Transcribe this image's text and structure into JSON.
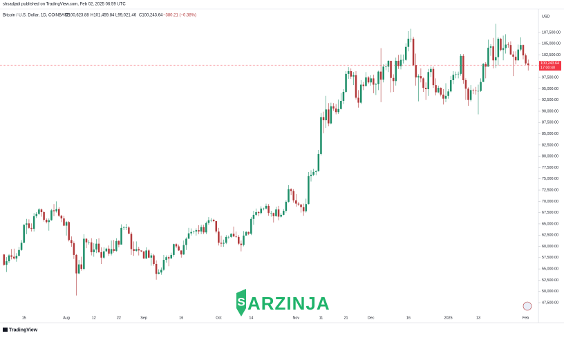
{
  "chart_data": {
    "type": "candlestick",
    "publisher_line": "shsadjadi published on TradingView.com, Feb 02, 2025 06:59 UTC",
    "symbol": "Bitcoin / U.S. Dollar, 1D, COINBASE",
    "ohlc_labels": [
      "O100,623.88",
      "H101,459.84",
      "L99,021.46",
      "C100,243.64"
    ],
    "change_label": "−380.21 (−0.38%)",
    "currency": "USD",
    "price_tag": {
      "price": "100,243.64",
      "countdown": "17:00:40"
    },
    "watermark": "ARZINJA",
    "footer": "TradingView",
    "up_color": "#1f8f6a",
    "down_color": "#b2393b",
    "price_line_color": "#f23645",
    "grid": false,
    "ylim": [
      45200,
      112700
    ],
    "yticks": [
      {
        "value": 47500,
        "label": "47,500.00"
      },
      {
        "value": 50000,
        "label": "50,000.00"
      },
      {
        "value": 52500,
        "label": "52,500.00"
      },
      {
        "value": 55000,
        "label": "55,000.00"
      },
      {
        "value": 57500,
        "label": "57,500.00"
      },
      {
        "value": 60000,
        "label": "60,000.00"
      },
      {
        "value": 62500,
        "label": "62,500.00"
      },
      {
        "value": 65000,
        "label": "65,000.00"
      },
      {
        "value": 67500,
        "label": "67,500.00"
      },
      {
        "value": 70000,
        "label": "70,000.00"
      },
      {
        "value": 72500,
        "label": "72,500.00"
      },
      {
        "value": 75000,
        "label": "75,000.00"
      },
      {
        "value": 77500,
        "label": "77,500.00"
      },
      {
        "value": 80000,
        "label": "80,000.00"
      },
      {
        "value": 82500,
        "label": "82,500.00"
      },
      {
        "value": 85000,
        "label": "85,000.00"
      },
      {
        "value": 87500,
        "label": "87,500.00"
      },
      {
        "value": 90000,
        "label": "90,000.00"
      },
      {
        "value": 92500,
        "label": "92,500.00"
      },
      {
        "value": 95000,
        "label": "95,000.00"
      },
      {
        "value": 97500,
        "label": "97,500.00"
      },
      {
        "value": 100000,
        "label": "100,000.00"
      },
      {
        "value": 102500,
        "label": "102,500.00"
      },
      {
        "value": 105000,
        "label": "105,000.00"
      },
      {
        "value": 107500,
        "label": "107,500.00"
      }
    ],
    "categories": [
      null,
      null,
      null,
      null,
      null,
      null,
      null,
      null,
      "15",
      null,
      null,
      null,
      null,
      null,
      null,
      null,
      null,
      null,
      null,
      null,
      null,
      null,
      null,
      null,
      null,
      "Aug",
      null,
      null,
      null,
      null,
      null,
      null,
      null,
      null,
      null,
      null,
      "12",
      null,
      null,
      null,
      null,
      null,
      null,
      null,
      null,
      null,
      "22",
      null,
      null,
      null,
      null,
      null,
      null,
      null,
      null,
      null,
      "Sep",
      null,
      null,
      null,
      null,
      null,
      null,
      null,
      null,
      null,
      null,
      null,
      null,
      null,
      null,
      "16",
      null,
      null,
      null,
      null,
      null,
      null,
      null,
      null,
      null,
      null,
      null,
      null,
      null,
      null,
      "Oct",
      null,
      null,
      null,
      null,
      null,
      null,
      null,
      null,
      null,
      null,
      null,
      null,
      "14",
      null,
      null,
      null,
      null,
      null,
      null,
      null,
      null,
      null,
      null,
      null,
      null,
      null,
      null,
      null,
      null,
      null,
      "Nov",
      null,
      null,
      null,
      null,
      null,
      null,
      null,
      null,
      null,
      "11",
      null,
      null,
      null,
      null,
      null,
      null,
      null,
      null,
      null,
      "21",
      null,
      null,
      null,
      null,
      null,
      null,
      null,
      null,
      null,
      "Dec",
      null,
      null,
      null,
      null,
      null,
      null,
      null,
      null,
      null,
      null,
      null,
      null,
      null,
      null,
      "16",
      null,
      null,
      null,
      null,
      null,
      null,
      null,
      null,
      null,
      null,
      null,
      null,
      null,
      null,
      null,
      "2025",
      null,
      null,
      null,
      null,
      null,
      null,
      null,
      null,
      null,
      null,
      null,
      "13",
      null,
      null,
      null,
      null,
      null,
      null,
      null,
      null,
      null,
      null,
      null,
      null,
      null,
      null,
      null,
      null,
      null,
      null,
      "Feb",
      null
    ],
    "open": [
      58200,
      55900,
      56700,
      58000,
      57700,
      57300,
      57900,
      59200,
      60800,
      64800,
      65100,
      64100,
      63900,
      66700,
      67200,
      68200,
      67600,
      65900,
      65400,
      65800,
      68000,
      67800,
      68300,
      66800,
      66200,
      64600,
      65400,
      61400,
      60700,
      58100,
      54000,
      56000,
      55000,
      61700,
      60900,
      60900,
      58700,
      59300,
      60600,
      58700,
      57500,
      58900,
      59500,
      58400,
      59400,
      59000,
      61200,
      60400,
      64100,
      64200,
      64200,
      62800,
      59400,
      59000,
      59400,
      59100,
      58900,
      57300,
      59100,
      57500,
      58000,
      56100,
      53900,
      54200,
      54800,
      57000,
      57600,
      57300,
      58100,
      60500,
      60000,
      59100,
      58200,
      60300,
      61700,
      62900,
      63200,
      63300,
      63600,
      63300,
      64300,
      63100,
      65200,
      65800,
      65900,
      65600,
      63300,
      60800,
      60600,
      60800,
      62100,
      62100,
      62800,
      62200,
      62100,
      60600,
      60300,
      62400,
      63200,
      62800,
      66100,
      67000,
      67600,
      67400,
      68400,
      68400,
      69000,
      67400,
      67400,
      66700,
      68200,
      66600,
      67000,
      67900,
      69900,
      72700,
      72300,
      70200,
      69500,
      69300,
      68700,
      67800,
      69400,
      75600,
      75900,
      76500,
      76700,
      80500,
      88700,
      88000,
      90400,
      87300,
      91100,
      90600,
      89800,
      90500,
      92300,
      94300,
      98300,
      98900,
      97700,
      98000,
      93000,
      91900,
      95900,
      95600,
      97500,
      96400,
      97300,
      95900,
      96000,
      98800,
      97000,
      99900,
      99900,
      101200,
      97400,
      96700,
      101200,
      100000,
      101400,
      101400,
      104300,
      106100,
      106100,
      100200,
      97500,
      97800,
      97300,
      95200,
      94900,
      98700,
      99400,
      95800,
      94200,
      95200,
      93700,
      92800,
      93400,
      94400,
      96900,
      98100,
      98200,
      98300,
      102300,
      96900,
      95000,
      92500,
      94700,
      94600,
      94500,
      94500,
      96500,
      100500,
      99900,
      104100,
      104400,
      101300,
      102000,
      106100,
      103600,
      104000,
      104800,
      104700,
      102600,
      102100,
      101300,
      103700,
      104700,
      102400,
      100623.88
    ],
    "high": [
      58300,
      57600,
      58300,
      59400,
      59500,
      58500,
      59900,
      61400,
      64900,
      66100,
      66000,
      65100,
      67400,
      67600,
      68500,
      68400,
      67800,
      66200,
      66200,
      68300,
      69400,
      70000,
      68700,
      67000,
      66800,
      65600,
      65600,
      62200,
      61100,
      58300,
      57000,
      57700,
      62700,
      61800,
      61400,
      61800,
      60700,
      61600,
      61800,
      59800,
      59800,
      59700,
      60200,
      61300,
      61400,
      61800,
      61400,
      64900,
      64500,
      65000,
      64500,
      63200,
      61100,
      61100,
      59900,
      59100,
      58900,
      59800,
      59400,
      58500,
      58300,
      56900,
      54900,
      55300,
      58100,
      58000,
      58000,
      58600,
      60600,
      60700,
      60400,
      59100,
      61300,
      62000,
      64100,
      64000,
      63500,
      64000,
      64700,
      64800,
      64800,
      65500,
      66500,
      66300,
      66100,
      65600,
      64100,
      62400,
      61500,
      62500,
      62400,
      62900,
      64400,
      63300,
      62500,
      61300,
      63400,
      63400,
      63300,
      66500,
      67900,
      68400,
      67900,
      68900,
      68600,
      69500,
      69400,
      67900,
      67500,
      68800,
      69000,
      67400,
      68300,
      70200,
      73600,
      72900,
      72700,
      71600,
      69900,
      69400,
      69500,
      70600,
      76500,
      76900,
      77200,
      76900,
      81400,
      89600,
      89900,
      93400,
      91800,
      91900,
      91800,
      91600,
      92600,
      94000,
      94900,
      98900,
      99800,
      99500,
      98700,
      98900,
      94700,
      96900,
      96500,
      98700,
      97800,
      98000,
      98100,
      96300,
      99000,
      104000,
      100400,
      100600,
      101300,
      101200,
      98200,
      101900,
      102500,
      102600,
      102600,
      105100,
      107800,
      108300,
      106500,
      102800,
      98200,
      99500,
      97500,
      96400,
      99400,
      99900,
      99900,
      97300,
      95700,
      95300,
      94900,
      96200,
      94900,
      97800,
      98900,
      98800,
      98800,
      102700,
      102700,
      97300,
      95300,
      95800,
      95000,
      95400,
      95900,
      97300,
      100700,
      100900,
      105900,
      104900,
      106300,
      109400,
      106400,
      106300,
      106800,
      107100,
      105300,
      105500,
      103300,
      103300,
      104800,
      106400,
      104800,
      102800,
      101459.84
    ],
    "low": [
      55700,
      54300,
      56300,
      57100,
      57100,
      56600,
      57800,
      59000,
      60700,
      62700,
      63900,
      63300,
      63300,
      66300,
      67000,
      66600,
      65500,
      65100,
      63500,
      65700,
      66700,
      67500,
      66500,
      65400,
      64500,
      62400,
      61100,
      59900,
      57200,
      49100,
      53800,
      54600,
      54700,
      59600,
      60400,
      58000,
      57700,
      58500,
      58500,
      56100,
      57200,
      58800,
      57900,
      58000,
      58600,
      58800,
      59800,
      60400,
      63600,
      63600,
      62800,
      58100,
      57900,
      58800,
      58000,
      58700,
      57200,
      57200,
      57400,
      55700,
      55700,
      52600,
      53800,
      53700,
      54600,
      56400,
      55600,
      57300,
      57700,
      59600,
      59000,
      57500,
      58100,
      59200,
      61700,
      62400,
      62800,
      62400,
      62700,
      62700,
      62700,
      62700,
      64800,
      65400,
      65400,
      62900,
      60200,
      59900,
      59900,
      60500,
      61700,
      61900,
      62100,
      61900,
      60300,
      58900,
      60000,
      62400,
      62500,
      62500,
      64800,
      66700,
      66700,
      67100,
      68000,
      68200,
      66800,
      66600,
      65300,
      66600,
      65800,
      66400,
      66900,
      67500,
      69700,
      71400,
      69700,
      68800,
      69000,
      67500,
      66800,
      67500,
      69300,
      74400,
      75600,
      75800,
      76600,
      80200,
      85100,
      86300,
      86700,
      87100,
      90100,
      89300,
      89400,
      90400,
      91600,
      94100,
      97200,
      97200,
      95800,
      92600,
      90800,
      91600,
      94700,
      95500,
      96100,
      95700,
      94000,
      93600,
      94700,
      92000,
      96400,
      99100,
      98700,
      94200,
      94300,
      95700,
      99400,
      99300,
      100600,
      101200,
      103300,
      105300,
      100000,
      95700,
      92200,
      96400,
      94300,
      92500,
      93400,
      97600,
      95200,
      93500,
      94000,
      93300,
      91500,
      92000,
      92800,
      94200,
      96000,
      97300,
      97300,
      97900,
      96100,
      92500,
      91200,
      92200,
      93800,
      93700,
      89300,
      94300,
      96500,
      97300,
      99900,
      102300,
      99500,
      99600,
      100100,
      103300,
      101300,
      102800,
      104100,
      102500,
      97800,
      100400,
      101300,
      103300,
      101500,
      100300,
      99021.46
    ],
    "close": [
      55900,
      56700,
      58000,
      57700,
      57300,
      57900,
      59200,
      60800,
      64800,
      65100,
      64100,
      63900,
      66700,
      67200,
      68200,
      67600,
      65900,
      65400,
      65800,
      68000,
      67800,
      68300,
      66800,
      66200,
      64600,
      65400,
      61400,
      60700,
      58100,
      54000,
      56000,
      55000,
      61700,
      60900,
      60900,
      58700,
      59300,
      60600,
      58700,
      57500,
      58900,
      59500,
      58400,
      59400,
      59000,
      61200,
      60400,
      64100,
      64200,
      64200,
      62800,
      59400,
      59000,
      59400,
      59100,
      58900,
      57300,
      59100,
      57500,
      58000,
      56100,
      53900,
      54200,
      54800,
      57000,
      57600,
      57300,
      58100,
      60500,
      60000,
      59100,
      58200,
      60300,
      61700,
      62900,
      63200,
      63300,
      63600,
      63300,
      64300,
      63100,
      65200,
      65800,
      65900,
      65600,
      63300,
      60800,
      60600,
      60800,
      62100,
      62100,
      62800,
      62200,
      62100,
      60600,
      60300,
      62400,
      63200,
      62800,
      66100,
      67000,
      67600,
      67400,
      68400,
      68400,
      69000,
      67400,
      67400,
      66700,
      68200,
      66600,
      67000,
      67900,
      69900,
      72700,
      72300,
      70200,
      69500,
      69300,
      68700,
      67800,
      69400,
      75600,
      75900,
      76500,
      76700,
      80500,
      88700,
      88000,
      90400,
      87300,
      91100,
      90600,
      89800,
      90500,
      92300,
      94300,
      98300,
      98900,
      97700,
      98000,
      93000,
      91900,
      95900,
      95600,
      97500,
      96400,
      97300,
      95900,
      96000,
      98800,
      97000,
      99900,
      99900,
      101200,
      97400,
      96700,
      101200,
      100000,
      101400,
      101400,
      104300,
      106100,
      106100,
      100200,
      97500,
      97800,
      97300,
      95200,
      94900,
      98700,
      99400,
      95800,
      94200,
      95200,
      93700,
      92800,
      93400,
      94400,
      96900,
      98100,
      98200,
      98300,
      102300,
      96900,
      95000,
      92500,
      94700,
      94600,
      94500,
      94500,
      96500,
      100500,
      99900,
      104100,
      104400,
      101300,
      102000,
      106100,
      103600,
      104000,
      104800,
      104700,
      102600,
      102100,
      101300,
      103700,
      104700,
      102400,
      100623.88,
      100243.64
    ]
  }
}
